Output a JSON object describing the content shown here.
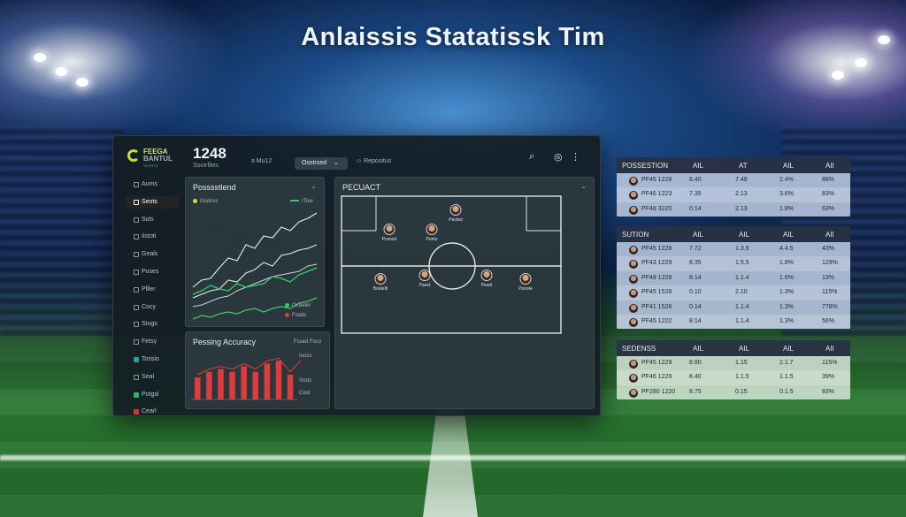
{
  "headline": "Anlaissis Statatissk Tim",
  "dashboard": {
    "logo": {
      "line1": "FEEGA",
      "line2": "BANTUL",
      "line3": "SPORTS"
    },
    "kpi": {
      "value": "1248",
      "label": "Sooirfiles"
    },
    "toolbar": {
      "item1": "ᴙ Mu12",
      "active": "Osstrsed",
      "item3": "☺ Repositus"
    },
    "sidebar": [
      "Aums",
      "Seots",
      "Sols",
      "Iistoti",
      "Geals",
      "Poses",
      "Plller",
      "Cocy",
      "Stugs",
      "Fetsy",
      "Tosslo",
      "Seal",
      "Potgsl",
      "Cearl"
    ],
    "possession_panel": {
      "title": "Posssstlend",
      "legend1": "Gsdnss",
      "legend2": "rTow",
      "legend3": "Oceeter",
      "legend4": "Foatis"
    },
    "accuracy_panel": {
      "title": "Pessing Accuracy",
      "legend_top": "Fssed Foco",
      "legend1": "Iooss",
      "legend2": "Srots",
      "legend3": "Cooi",
      "bars": [
        8,
        10,
        11,
        10,
        12,
        10,
        13,
        14,
        9
      ]
    },
    "pitch_panel": {
      "title": "PECUACT",
      "players": [
        "Pcessd",
        "Bosteltl",
        "Poeto",
        "Pacted",
        "Paect",
        "Peaol",
        "Psoote"
      ]
    }
  },
  "tables": [
    {
      "title": "POSSESTION",
      "cols": [
        "AIL",
        "AT",
        "AIL",
        "AII"
      ],
      "rows": [
        [
          "PF45 1228",
          "8.40",
          "7.48",
          "2.4%",
          "88%"
        ],
        [
          "PF46 1223",
          "7.35",
          "2.13",
          "3.6%",
          "83%"
        ],
        [
          "PF48 3220",
          "0.14",
          "2.13",
          "1.8%",
          "63%"
        ]
      ]
    },
    {
      "title": "SUTION",
      "cols": [
        "AIL",
        "AIL",
        "AIL",
        "AII"
      ],
      "rows": [
        [
          "PF45 1228",
          "7.72",
          "1.3.9",
          "4.4.5",
          "43%"
        ],
        [
          "PF43 1229",
          "8.35",
          "1.5.5",
          "1.8%",
          "129%"
        ],
        [
          "PF49 1228",
          "8.14",
          "1.1.4",
          "1.6%",
          "13%"
        ],
        [
          "PF45 1528",
          "0.10",
          "2.10",
          "1.3%",
          "115%"
        ],
        [
          "PF41 1528",
          "0.14",
          "1.1.4",
          "1.3%",
          "778%"
        ],
        [
          "PF45 1222",
          "8.14",
          "1.1.4",
          "1.3%",
          "56%"
        ]
      ]
    },
    {
      "title": "SEDENSS",
      "cols": [
        "AIL",
        "AIL",
        "AIL",
        "AII"
      ],
      "rows": [
        [
          "PF45 1229",
          "8.80",
          "1.15",
          "2.1.7",
          "115%"
        ],
        [
          "PF46 1229",
          "8.40",
          "1.1.5",
          "1.1.5",
          "39%"
        ],
        [
          "PF280 1220",
          "8.75",
          "0.15",
          "0.1.5",
          "83%"
        ]
      ]
    }
  ],
  "colors": {
    "accent": "#e8891a",
    "bar": "#e03a3a",
    "line_white": "#e8eef2",
    "line_green": "#2fd06a"
  }
}
